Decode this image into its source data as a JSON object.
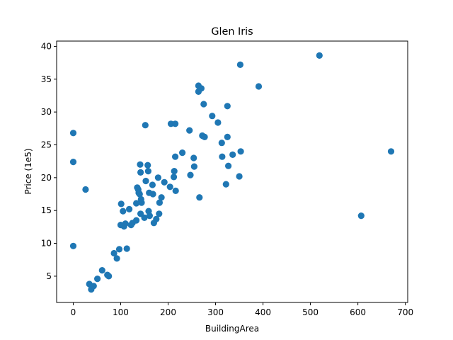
{
  "chart_data": {
    "type": "scatter",
    "title": "Glen Iris",
    "xlabel": "BuildingArea",
    "ylabel": "Price (1e5)",
    "xlim": [
      -35,
      705
    ],
    "ylim": [
      1.0,
      40.8
    ],
    "xticks": [
      0,
      100,
      200,
      300,
      400,
      500,
      600,
      700
    ],
    "yticks": [
      5,
      10,
      15,
      20,
      25,
      30,
      35,
      40
    ],
    "xtick_labels": [
      "0",
      "100",
      "200",
      "300",
      "400",
      "500",
      "600",
      "700"
    ],
    "ytick_labels": [
      "5",
      "10",
      "15",
      "20",
      "25",
      "30",
      "35",
      "40"
    ],
    "grid": false,
    "marker_color": "#1f77b4",
    "series": [
      {
        "points": [
          [
            0,
            26.8
          ],
          [
            0,
            22.4
          ],
          [
            0,
            9.6
          ],
          [
            26,
            18.2
          ],
          [
            34,
            3.8
          ],
          [
            38,
            3.0
          ],
          [
            43,
            3.5
          ],
          [
            51,
            4.6
          ],
          [
            61,
            5.9
          ],
          [
            72,
            5.2
          ],
          [
            75,
            5.0
          ],
          [
            86,
            8.5
          ],
          [
            92,
            7.7
          ],
          [
            97,
            9.1
          ],
          [
            100,
            12.8
          ],
          [
            101,
            16.0
          ],
          [
            105,
            14.9
          ],
          [
            107,
            12.6
          ],
          [
            110,
            13.0
          ],
          [
            113,
            9.2
          ],
          [
            118,
            15.2
          ],
          [
            122,
            12.8
          ],
          [
            125,
            13.1
          ],
          [
            133,
            16.1
          ],
          [
            133,
            13.5
          ],
          [
            135,
            18.5
          ],
          [
            137,
            18.2
          ],
          [
            138,
            17.7
          ],
          [
            140,
            17.5
          ],
          [
            141,
            22.0
          ],
          [
            142,
            20.8
          ],
          [
            142,
            14.5
          ],
          [
            143,
            16.7
          ],
          [
            144,
            16.2
          ],
          [
            150,
            13.9
          ],
          [
            152,
            28.0
          ],
          [
            153,
            19.5
          ],
          [
            157,
            21.9
          ],
          [
            158,
            21.0
          ],
          [
            159,
            14.9
          ],
          [
            160,
            17.7
          ],
          [
            161,
            14.2
          ],
          [
            167,
            18.9
          ],
          [
            168,
            17.5
          ],
          [
            170,
            13.1
          ],
          [
            175,
            13.7
          ],
          [
            179,
            20.0
          ],
          [
            181,
            14.5
          ],
          [
            182,
            16.2
          ],
          [
            186,
            17.0
          ],
          [
            192,
            19.3
          ],
          [
            204,
            18.6
          ],
          [
            206,
            28.2
          ],
          [
            212,
            20.1
          ],
          [
            213,
            21.0
          ],
          [
            215,
            28.2
          ],
          [
            216,
            18.0
          ],
          [
            215,
            23.2
          ],
          [
            230,
            23.8
          ],
          [
            245,
            27.2
          ],
          [
            247,
            20.4
          ],
          [
            254,
            23.0
          ],
          [
            255,
            21.7
          ],
          [
            264,
            33.1
          ],
          [
            264,
            34.0
          ],
          [
            266,
            17.0
          ],
          [
            270,
            33.6
          ],
          [
            272,
            26.4
          ],
          [
            275,
            31.2
          ],
          [
            277,
            26.2
          ],
          [
            293,
            29.4
          ],
          [
            305,
            28.4
          ],
          [
            313,
            25.3
          ],
          [
            314,
            23.2
          ],
          [
            322,
            19.0
          ],
          [
            325,
            26.2
          ],
          [
            325,
            30.9
          ],
          [
            327,
            21.8
          ],
          [
            336,
            23.5
          ],
          [
            350,
            20.2
          ],
          [
            352,
            37.2
          ],
          [
            353,
            24.0
          ],
          [
            391,
            33.9
          ],
          [
            519,
            38.6
          ],
          [
            607,
            14.2
          ],
          [
            670,
            24.0
          ]
        ]
      }
    ]
  }
}
